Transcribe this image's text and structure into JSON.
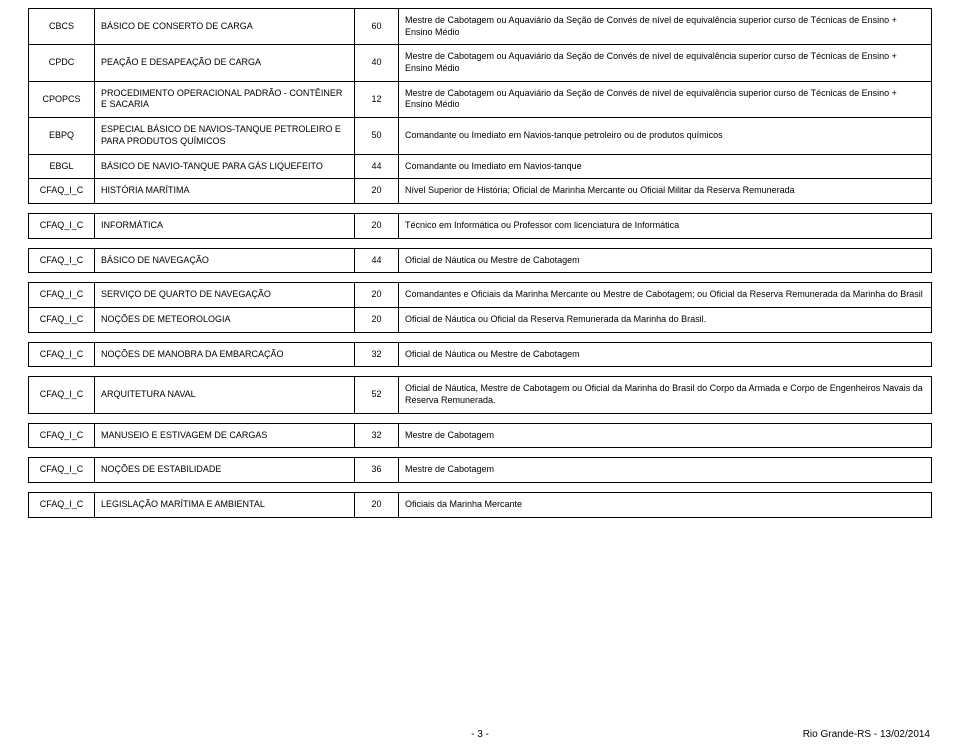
{
  "rows": [
    {
      "c1": "CBCS",
      "c2": "BÁSICO DE CONSERTO DE CARGA",
      "c3": "60",
      "c4": "Mestre de Cabotagem ou Aquaviário da Seção de Convés de nível de equivalência superior curso de Técnicas de Ensino + Ensino Médio"
    },
    {
      "c1": "CPDC",
      "c2": "PEAÇÃO E DESAPEAÇÃO DE CARGA",
      "c3": "40",
      "c4": "Mestre de Cabotagem ou Aquaviário da Seção de Convés de nível de equivalência superior curso de Técnicas de Ensino + Ensino Médio"
    },
    {
      "c1": "CPOPCS",
      "c2": "PROCEDIMENTO OPERACIONAL PADRÃO - CONTÊINER E SACARIA",
      "c3": "12",
      "c4": "Mestre de Cabotagem ou Aquaviário da Seção de Convés de nível de equivalência superior curso de Técnicas de Ensino + Ensino Médio"
    },
    {
      "c1": "EBPQ",
      "c2": "ESPECIAL BÁSICO DE NAVIOS-TANQUE PETROLEIRO E PARA PRODUTOS QUÍMICOS",
      "c3": "50",
      "c4": "Comandante ou Imediato em Navios-tanque petroleiro ou de produtos químicos"
    },
    {
      "c1": "EBGL",
      "c2": "BÁSICO DE NAVIO-TANQUE PARA GÁS LIQUEFEITO",
      "c3": "44",
      "c4": "Comandante ou Imediato em Navios-tanque"
    },
    {
      "c1": "CFAQ_I_C",
      "c2": "HISTÓRIA MARÍTIMA",
      "c3": "20",
      "c4": "Nível Superior de História;  Oficial de Marinha Mercante ou Oficial Militar da Reserva Remunerada"
    },
    {
      "c1": "CFAQ_I_C",
      "c2": "INFORMÁTICA",
      "c3": "20",
      "c4": "Técnico em Informática ou Professor com licenciatura de Informática"
    },
    {
      "c1": "CFAQ_I_C",
      "c2": "BÁSICO DE NAVEGAÇÃO",
      "c3": "44",
      "c4": "Oficial de Náutica ou Mestre de Cabotagem"
    },
    {
      "c1": "CFAQ_I_C",
      "c2": "SERVIÇO DE QUARTO DE NAVEGAÇÃO",
      "c3": "20",
      "c4": "Comandantes e Oficiais da Marinha Mercante ou Mestre de Cabotagem; ou Oficial da Reserva Remunerada da Marinha do Brasil"
    },
    {
      "c1": "CFAQ_I_C",
      "c2": "NOÇÕES DE METEOROLOGIA",
      "c3": "20",
      "c4": "Oficial de Náutica  ou Oficial da Reserva Remunerada da Marinha do Brasil."
    },
    {
      "c1": "CFAQ_I_C",
      "c2": "NOÇÕES DE MANOBRA DA EMBARCAÇÃO",
      "c3": "32",
      "c4": "Oficial de Náutica  ou Mestre de Cabotagem"
    },
    {
      "c1": "CFAQ_I_C",
      "c2": "ARQUITETURA NAVAL",
      "c3": "52",
      "c4": "Oficial de Náutica, Mestre de Cabotagem  ou Oficial da Marinha do Brasil do Corpo da Armada e Corpo de Engenheiros Navais da Reserva Remunerada."
    },
    {
      "c1": "CFAQ_I_C",
      "c2": "MANUSEIO E ESTIVAGEM DE  CARGAS",
      "c3": "32",
      "c4": " Mestre de Cabotagem"
    },
    {
      "c1": "CFAQ_I_C",
      "c2": "NOÇÕES DE ESTABILIDADE",
      "c3": "36",
      "c4": "Mestre de Cabotagem"
    },
    {
      "c1": "CFAQ_I_C",
      "c2": "LEGISLAÇÃO MARÍTIMA E AMBIENTAL",
      "c3": "20",
      "c4": "Oficiais da Marinha Mercante"
    }
  ],
  "spacers_after": [
    5,
    6,
    7,
    9,
    10,
    11,
    12,
    13
  ],
  "footer": "Rio Grande-RS - 13/02/2014",
  "pagenum": "- 3 -"
}
